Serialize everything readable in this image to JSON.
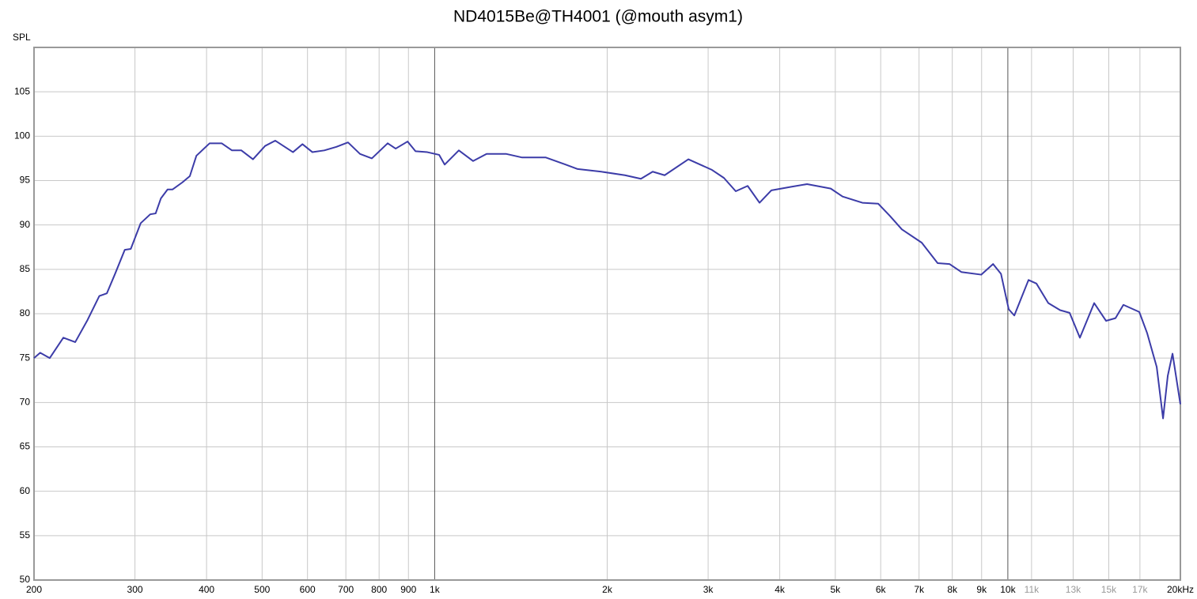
{
  "chart_data": {
    "type": "line",
    "title": "ND4015Be@TH4001 (@mouth asym1)",
    "y_label": "SPL",
    "log_x": true,
    "grid": true,
    "xlim": [
      200,
      20000
    ],
    "ylim": [
      50,
      110
    ],
    "yticks": [
      50,
      55,
      60,
      65,
      70,
      75,
      80,
      85,
      90,
      95,
      100,
      105
    ],
    "xticks": [
      200,
      300,
      400,
      500,
      600,
      700,
      800,
      900,
      {
        "value": 1000,
        "label": "1k"
      },
      {
        "value": 2000,
        "label": "2k"
      },
      {
        "value": 3000,
        "label": "3k"
      },
      {
        "value": 4000,
        "label": "4k"
      },
      {
        "value": 5000,
        "label": "5k"
      },
      {
        "value": 6000,
        "label": "6k"
      },
      {
        "value": 7000,
        "label": "7k"
      },
      {
        "value": 8000,
        "label": "8k"
      },
      {
        "value": 9000,
        "label": "9k"
      },
      {
        "value": 10000,
        "label": "10k"
      },
      {
        "value": 11000,
        "label": "11k",
        "color": "#999999"
      },
      {
        "value": 13000,
        "label": "13k",
        "color": "#999999"
      },
      {
        "value": 15000,
        "label": "15k",
        "color": "#999999"
      },
      {
        "value": 17000,
        "label": "17k",
        "color": "#999999"
      },
      {
        "value": 20000,
        "label": "20kHz"
      }
    ],
    "x": [
      200,
      205,
      213,
      225,
      236,
      248,
      260,
      268,
      277,
      288,
      295,
      307,
      319,
      326,
      333,
      342,
      349,
      363,
      374,
      384,
      405,
      425,
      443,
      460,
      482,
      506,
      527,
      566,
      588,
      612,
      642,
      674,
      706,
      741,
      777,
      828,
      855,
      897,
      926,
      971,
      1018,
      1041,
      1102,
      1167,
      1232,
      1334,
      1421,
      1563,
      1693,
      1776,
      1953,
      2148,
      2290,
      2401,
      2519,
      2771,
      2906,
      3047,
      3196,
      3352,
      3516,
      3688,
      3868,
      4189,
      4464,
      4909,
      5148,
      5575,
      5940,
      6230,
      6534,
      7076,
      7543,
      7909,
      8296,
      8985,
      9424,
      9728,
      10036,
      10263,
      10866,
      11217,
      11764,
      12338,
      12817,
      13357,
      14146,
      14835,
      15410,
      15908,
      16422,
      16956,
      17503,
      18186,
      18655,
      19011,
      19378,
      20000
    ],
    "series": [
      {
        "name": "ND4015Be@TH4001",
        "color": "#3c3ca8",
        "values": [
          75.0,
          75.6,
          75.0,
          77.3,
          76.8,
          79.3,
          82.0,
          82.3,
          84.5,
          87.2,
          87.3,
          90.2,
          91.2,
          91.3,
          93.0,
          94.0,
          94.0,
          94.8,
          95.5,
          97.8,
          99.2,
          99.2,
          98.4,
          98.4,
          97.4,
          98.9,
          99.5,
          98.2,
          99.1,
          98.2,
          98.4,
          98.8,
          99.3,
          98.0,
          97.5,
          99.2,
          98.6,
          99.4,
          98.3,
          98.2,
          97.9,
          96.8,
          98.4,
          97.2,
          98.0,
          98.0,
          97.6,
          97.6,
          96.8,
          96.3,
          96.0,
          95.6,
          95.2,
          96.0,
          95.6,
          97.4,
          96.8,
          96.2,
          95.3,
          93.8,
          94.4,
          92.5,
          93.9,
          94.3,
          94.6,
          94.1,
          93.2,
          92.5,
          92.4,
          91.0,
          89.5,
          88.0,
          85.7,
          85.6,
          84.7,
          84.4,
          85.6,
          84.5,
          80.5,
          79.8,
          83.8,
          83.4,
          81.2,
          80.4,
          80.1,
          77.3,
          81.2,
          79.2,
          79.5,
          81.0,
          80.6,
          80.2,
          77.8,
          74.0,
          68.2,
          73.0,
          75.5,
          69.8
        ]
      }
    ]
  }
}
